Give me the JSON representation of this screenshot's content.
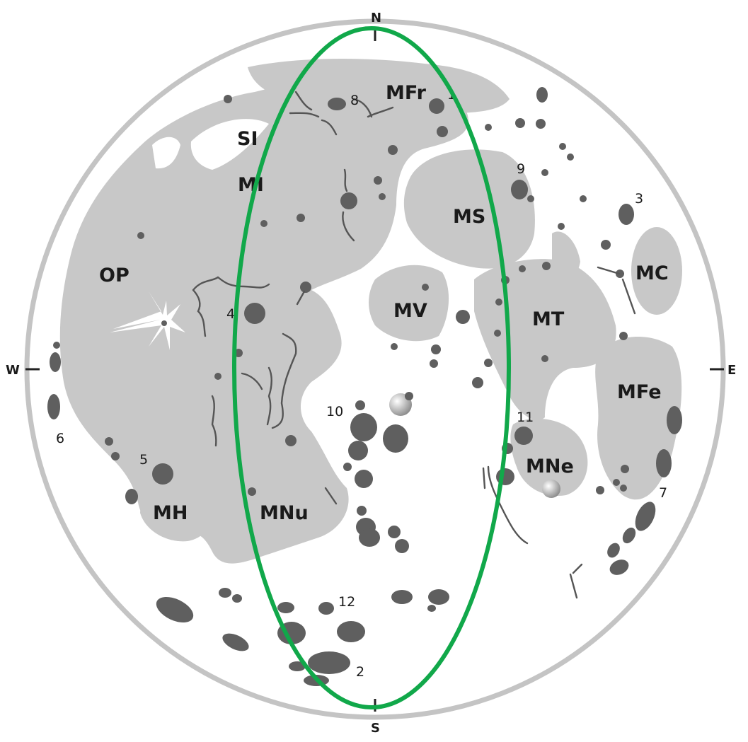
{
  "map": {
    "directions": {
      "north": "N",
      "south": "S",
      "west": "W",
      "east": "E"
    },
    "maria": [
      {
        "id": "mfr",
        "label": "MFr"
      },
      {
        "id": "si",
        "label": "SI"
      },
      {
        "id": "mi",
        "label": "MI"
      },
      {
        "id": "ms",
        "label": "MS"
      },
      {
        "id": "mc",
        "label": "MC"
      },
      {
        "id": "op",
        "label": "OP"
      },
      {
        "id": "mv",
        "label": "MV"
      },
      {
        "id": "mt",
        "label": "MT"
      },
      {
        "id": "mfe",
        "label": "MFe"
      },
      {
        "id": "mne",
        "label": "MNe"
      },
      {
        "id": "mh",
        "label": "MH"
      },
      {
        "id": "mnu",
        "label": "MNu"
      }
    ],
    "numbers": [
      "1",
      "2",
      "3",
      "4",
      "5",
      "6",
      "7",
      "8",
      "9",
      "10",
      "11",
      "12"
    ],
    "colors": {
      "disk": "#ffffff",
      "disk_outline": "#bdbdbd",
      "mare": "#c8c8c8",
      "crater": "#5f5f5f",
      "rille": "#555555",
      "highlight_ellipse": "#11a84a"
    }
  }
}
